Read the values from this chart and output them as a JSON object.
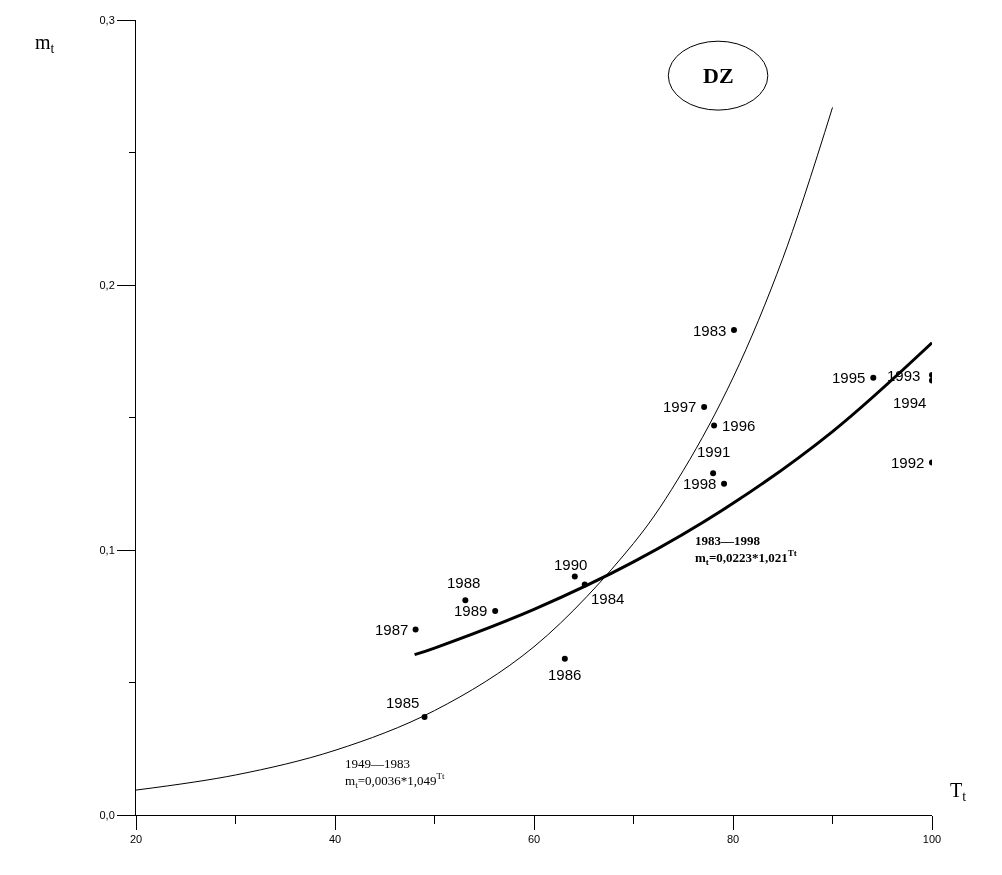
{
  "chart_data": {
    "type": "scatter",
    "xlabel": "T$_{t}$",
    "ylabel": "m$_{t}$",
    "xlim": [
      20,
      100
    ],
    "ylim": [
      0,
      0.3
    ],
    "xticks": [
      20,
      {
        "value": 30,
        "label": null
      },
      40,
      {
        "value": 50,
        "label": null
      },
      60,
      {
        "value": 70,
        "label": null
      },
      80,
      {
        "value": 90,
        "label": null
      },
      100
    ],
    "yticks": [
      {
        "value": 0,
        "label": "0,0"
      },
      {
        "value": 0.05,
        "label": null
      },
      {
        "value": 0.1,
        "label": "0,1"
      },
      {
        "value": 0.15,
        "label": null
      },
      {
        "value": 0.2,
        "label": "0,2"
      },
      {
        "value": 0.25,
        "label": null
      },
      {
        "value": 0.3,
        "label": "0,3"
      }
    ],
    "series": [
      {
        "marker": "circle",
        "color": "#000000",
        "x": [
          80.1,
          65.1,
          49.0,
          63.1,
          48.1,
          53.1,
          56.1,
          64.1,
          78.0,
          100,
          100,
          100,
          94.1,
          78.1,
          77.1,
          79.1
        ],
        "values": [
          0.183,
          0.087,
          0.037,
          0.059,
          0.07,
          0.081,
          0.077,
          0.09,
          0.129,
          0.133,
          0.166,
          0.164,
          0.165,
          0.147,
          0.154,
          0.125
        ]
      },
      {
        "type": "line",
        "color": "#000000",
        "line_style": "solid",
        "x": [
          20,
          30,
          40,
          50,
          60,
          70,
          75,
          80,
          85,
          90
        ],
        "values": [
          0.0094,
          0.0151,
          0.0244,
          0.0394,
          0.0635,
          0.1025,
          0.13,
          0.165,
          0.21,
          0.267
        ]
      },
      {
        "type": "line",
        "color": "#000000",
        "line_style": "solid",
        "x": [
          48,
          50,
          60,
          70,
          80,
          90,
          100
        ],
        "values": [
          0.0605,
          0.063,
          0.0776,
          0.0955,
          0.1176,
          0.1447,
          0.1782
        ]
      }
    ],
    "annotations": [
      {
        "text": "1983",
        "x": 80.1,
        "y": 0.183
      },
      {
        "text": "1984",
        "x": 65.1,
        "y": 0.087
      },
      {
        "text": "1985",
        "x": 49.0,
        "y": 0.037
      },
      {
        "text": "1986",
        "x": 63.1,
        "y": 0.059
      },
      {
        "text": "1987",
        "x": 48.1,
        "y": 0.07
      },
      {
        "text": "1988",
        "x": 53.1,
        "y": 0.081
      },
      {
        "text": "1989",
        "x": 56.1,
        "y": 0.077
      },
      {
        "text": "1990",
        "x": 64.1,
        "y": 0.09
      },
      {
        "text": "1991",
        "x": 78.0,
        "y": 0.129
      },
      {
        "text": "1992",
        "x": 100,
        "y": 0.133
      },
      {
        "text": "1993",
        "x": 100,
        "y": 0.166
      },
      {
        "text": "1994",
        "x": 100,
        "y": 0.164
      },
      {
        "text": "1995",
        "x": 94.1,
        "y": 0.165
      },
      {
        "text": "1996",
        "x": 78.1,
        "y": 0.147
      },
      {
        "text": "1997",
        "x": 77.1,
        "y": 0.154
      },
      {
        "text": "1998",
        "x": 79.1,
        "y": 0.125
      },
      "DZ",
      "1949—1983\nm$_{t}$=0,0036*1,049$^{Tt}$",
      "1983—1998\nm$_{t}$=0,0223*1,021$^{Tt}$"
    ]
  }
}
